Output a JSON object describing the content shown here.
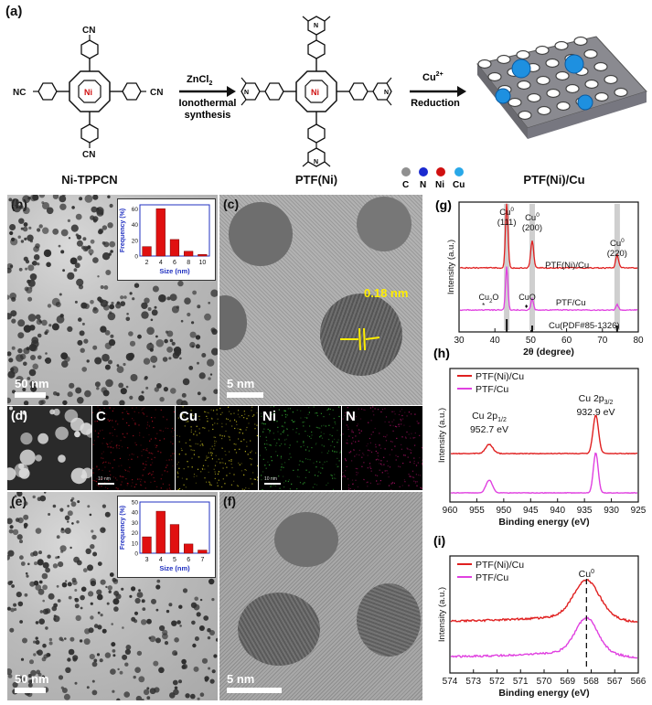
{
  "panels": {
    "a": "(a)",
    "b": "(b)",
    "c": "(c)",
    "d": "(d)",
    "e": "(e)",
    "f": "(f)",
    "g": "(g)",
    "h": "(h)",
    "i": "(i)"
  },
  "scheme": {
    "mol1": "Ni-TPPCN",
    "mol2": "PTF(Ni)",
    "mol3": "PTF(Ni)/Cu",
    "arrow1_top": "ZnCl",
    "arrow1_top_sub": "2",
    "arrow1_bottom1": "Ionothermal",
    "arrow1_bottom2": "synthesis",
    "arrow2_top": "Cu",
    "arrow2_top_sup": "2+",
    "arrow2_bottom": "Reduction",
    "cn": "CN",
    "nc": "NC",
    "ni": "Ni",
    "n_atom": "N",
    "legend": [
      "C",
      "N",
      "Ni",
      "Cu"
    ]
  },
  "micrographs": {
    "b_scale": "50 nm",
    "c_scale": "5 nm",
    "c_lattice": "0.18 nm",
    "e_scale": "50 nm",
    "f_scale": "5 nm",
    "d_maps": [
      "C",
      "Cu",
      "Ni",
      "N"
    ],
    "d_minibar": "10 nm"
  },
  "colors": {
    "red_series": "#e02020",
    "magenta_series": "#e040e0",
    "hist_bar": "#e01010",
    "hist_axis": "#2030c0",
    "lattice": "#ffee00"
  },
  "chart_data": [
    {
      "id": "b-inset",
      "type": "bar",
      "categories": [
        "2",
        "4",
        "6",
        "8",
        "10"
      ],
      "values": [
        12,
        60,
        21,
        6,
        2
      ],
      "xlabel": "Size (nm)",
      "ylabel": "Frequency (%)",
      "yticks": [
        "0",
        "20",
        "40",
        "60"
      ],
      "ylim": [
        0,
        65
      ]
    },
    {
      "id": "e-inset",
      "type": "bar",
      "categories": [
        "3",
        "4",
        "5",
        "6",
        "7"
      ],
      "values": [
        16,
        41,
        28,
        9,
        3
      ],
      "xlabel": "Size (nm)",
      "ylabel": "Frequency (%)",
      "yticks": [
        "0",
        "10",
        "20",
        "30",
        "40",
        "50"
      ],
      "ylim": [
        0,
        50
      ]
    },
    {
      "id": "g",
      "type": "line",
      "xlabel": "2θ (degree)",
      "ylabel": "Intensity (a.u.)",
      "xlim": [
        30,
        80
      ],
      "xticks": [
        "30",
        "40",
        "50",
        "60",
        "70",
        "80"
      ],
      "series": [
        {
          "name": "PTF(Ni)/Cu",
          "peaks": [
            43.3,
            50.4,
            74.1
          ]
        },
        {
          "name": "PTF/Cu",
          "peaks": [
            43.3,
            50.4,
            74.1
          ]
        }
      ],
      "reference": {
        "name": "Cu(PDF#85-1326)",
        "lines": [
          43.3,
          50.4,
          74.1
        ]
      },
      "annotations": [
        {
          "text": "Cu",
          "sup": "0",
          "hkl": "(111)",
          "x": 43.3
        },
        {
          "text": "Cu",
          "sup": "0",
          "hkl": "(200)",
          "x": 50.4
        },
        {
          "text": "Cu",
          "sup": "0",
          "hkl": "(220)",
          "x": 74.1
        }
      ],
      "minor_labels": {
        "cu2o": "Cu",
        "cu2o_sub": "2",
        "cu2o_tail": "O",
        "cuo": "CuO"
      }
    },
    {
      "id": "h",
      "type": "line",
      "xlabel": "Binding energy (eV)",
      "ylabel": "Intensity (a.u.)",
      "xlim": [
        960,
        925
      ],
      "xticks": [
        "960",
        "955",
        "950",
        "945",
        "940",
        "935",
        "930",
        "925"
      ],
      "series": [
        {
          "name": "PTF(Ni)/Cu",
          "peaks": [
            952.7,
            932.9
          ]
        },
        {
          "name": "PTF/Cu",
          "peaks": [
            952.7,
            932.9
          ]
        }
      ],
      "annotations": [
        {
          "text": "Cu 2p",
          "sub": "1/2",
          "value": "952.7 eV"
        },
        {
          "text": "Cu 2p",
          "sub": "3/2",
          "value": "932.9 eV"
        }
      ]
    },
    {
      "id": "i",
      "type": "line",
      "xlabel": "Binding energy (eV)",
      "ylabel": "Intensity (a.u.)",
      "xlim": [
        574,
        566
      ],
      "xticks": [
        "574",
        "573",
        "572",
        "571",
        "570",
        "569",
        "568",
        "567",
        "566"
      ],
      "series": [
        {
          "name": "PTF(Ni)/Cu",
          "peak": 568.2
        },
        {
          "name": "PTF/Cu",
          "peak": 568.2
        }
      ],
      "annotation": {
        "text": "Cu",
        "sup": "0",
        "x": 568.2
      }
    }
  ]
}
